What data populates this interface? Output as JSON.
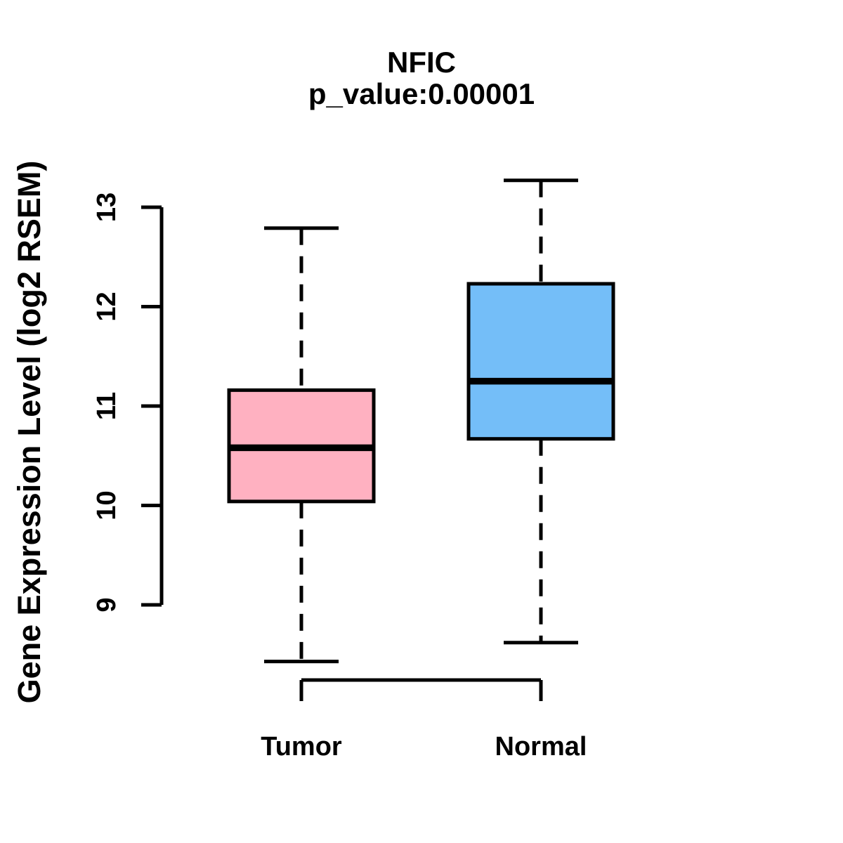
{
  "chart_data": {
    "type": "boxplot",
    "title": "NFIC",
    "subtitle": "p_value:0.00001",
    "ylabel": "Gene Expression Level (log2 RSEM)",
    "xlabel": "",
    "yticks": [
      9,
      10,
      11,
      12,
      13
    ],
    "ylim": [
      8.3,
      13.4
    ],
    "background_color": "#FFFFFF",
    "axis_color": "#000000",
    "grid": "off",
    "legend": "none",
    "groups": [
      {
        "label": "Tumor",
        "fill_color": "#FFB1C1",
        "whisker_low": 8.43,
        "q1": 10.04,
        "median": 10.58,
        "q3": 11.16,
        "whisker_high": 12.79
      },
      {
        "label": "Normal",
        "fill_color": "#74BEF8",
        "whisker_low": 8.62,
        "q1": 10.67,
        "median": 11.25,
        "q3": 12.23,
        "whisker_high": 13.27
      }
    ]
  }
}
